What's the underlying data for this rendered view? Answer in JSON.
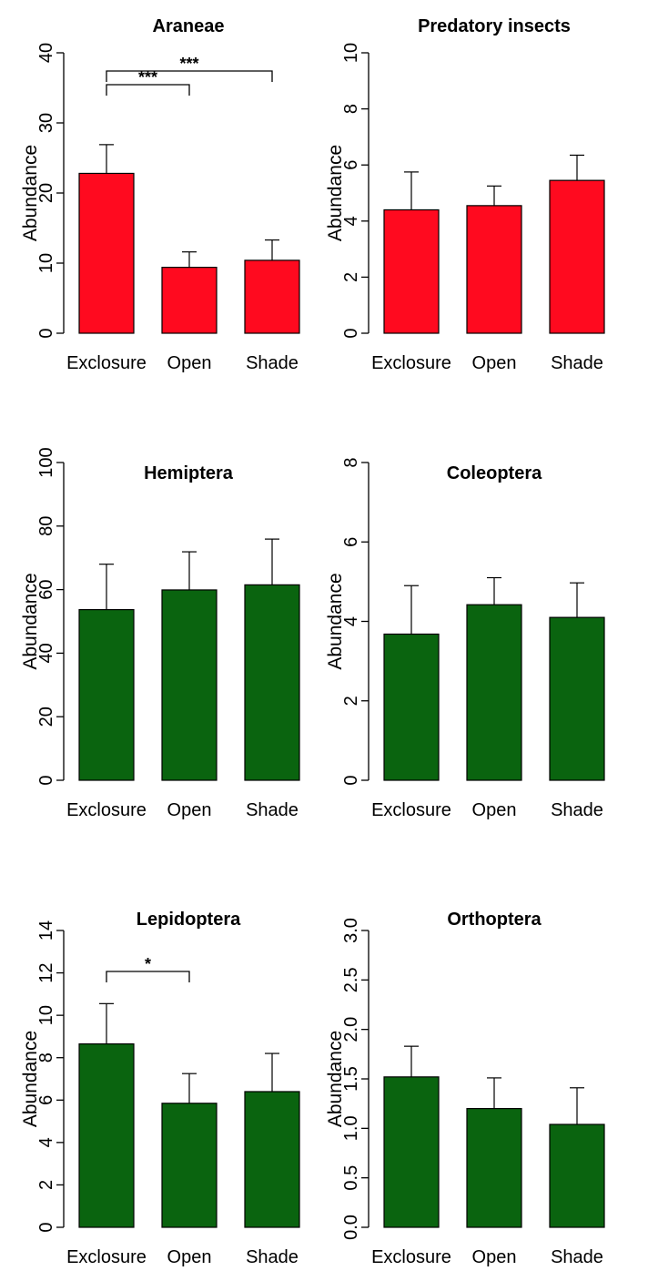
{
  "figure": {
    "bar_stroke": "#000000",
    "panels": [
      {
        "chart_data": {
          "type": "bar",
          "title": "Araneae",
          "ylabel": "Abundance",
          "xlabel": "",
          "categories": [
            "Exclosure",
            "Open",
            "Shade"
          ],
          "values": [
            22.8,
            9.4,
            10.4
          ],
          "error_upper": [
            26.9,
            11.6,
            13.3
          ],
          "ylim": [
            0,
            40
          ],
          "yticks": [
            0,
            10,
            20,
            30,
            40
          ],
          "ytick_labels": [
            "0",
            "10",
            "20",
            "30",
            "40"
          ],
          "color": "#ff0a1f",
          "significance": [
            {
              "from": 0,
              "to": 1,
              "label": "***"
            },
            {
              "from": 0,
              "to": 2,
              "label": "***"
            }
          ]
        }
      },
      {
        "chart_data": {
          "type": "bar",
          "title": "Predatory insects",
          "ylabel": "Abundance",
          "xlabel": "",
          "categories": [
            "Exclosure",
            "Open",
            "Shade"
          ],
          "values": [
            4.4,
            4.55,
            5.45
          ],
          "error_upper": [
            5.75,
            5.25,
            6.35
          ],
          "ylim": [
            0,
            10
          ],
          "yticks": [
            0,
            2,
            4,
            6,
            8,
            10
          ],
          "ytick_labels": [
            "0",
            "2",
            "4",
            "6",
            "8",
            "10"
          ],
          "color": "#ff0a1f",
          "significance": []
        }
      },
      {
        "chart_data": {
          "type": "bar",
          "title": "Hemiptera",
          "ylabel": "Abundance",
          "xlabel": "",
          "categories": [
            "Exclosure",
            "Open",
            "Shade"
          ],
          "values": [
            53.7,
            59.9,
            61.5
          ],
          "error_upper": [
            68.0,
            71.9,
            75.9
          ],
          "ylim": [
            0,
            100
          ],
          "yticks": [
            0,
            20,
            40,
            60,
            80,
            100
          ],
          "ytick_labels": [
            "0",
            "20",
            "40",
            "60",
            "80",
            "100"
          ],
          "color": "#0a640f",
          "significance": []
        }
      },
      {
        "chart_data": {
          "type": "bar",
          "title": "Coleoptera",
          "ylabel": "Abundance",
          "xlabel": "",
          "categories": [
            "Exclosure",
            "Open",
            "Shade"
          ],
          "values": [
            3.68,
            4.42,
            4.1
          ],
          "error_upper": [
            4.9,
            5.1,
            4.97
          ],
          "ylim": [
            0,
            8
          ],
          "yticks": [
            0,
            2,
            4,
            6,
            8
          ],
          "ytick_labels": [
            "0",
            "2",
            "4",
            "6",
            "8"
          ],
          "color": "#0a640f",
          "significance": []
        }
      },
      {
        "chart_data": {
          "type": "bar",
          "title": "Lepidoptera",
          "ylabel": "Abundance",
          "xlabel": "",
          "categories": [
            "Exclosure",
            "Open",
            "Shade"
          ],
          "values": [
            8.65,
            5.85,
            6.4
          ],
          "error_upper": [
            10.55,
            7.25,
            8.2
          ],
          "ylim": [
            0,
            14
          ],
          "yticks": [
            0,
            2,
            4,
            6,
            8,
            10,
            12,
            14
          ],
          "ytick_labels": [
            "0",
            "2",
            "4",
            "6",
            "8",
            "10",
            "12",
            "14"
          ],
          "color": "#0a640f",
          "significance": [
            {
              "from": 0,
              "to": 1,
              "label": "*"
            }
          ]
        }
      },
      {
        "chart_data": {
          "type": "bar",
          "title": "Orthoptera",
          "ylabel": "Abundance",
          "xlabel": "",
          "categories": [
            "Exclosure",
            "Open",
            "Shade"
          ],
          "values": [
            1.52,
            1.2,
            1.04
          ],
          "error_upper": [
            1.83,
            1.51,
            1.41
          ],
          "ylim": [
            0,
            3
          ],
          "yticks": [
            0,
            0.5,
            1,
            1.5,
            2,
            2.5,
            3
          ],
          "ytick_labels": [
            "0.0",
            "0.5",
            "1.0",
            "1.5",
            "2.0",
            "2.5",
            "3.0"
          ],
          "color": "#0a640f",
          "significance": []
        }
      }
    ]
  }
}
